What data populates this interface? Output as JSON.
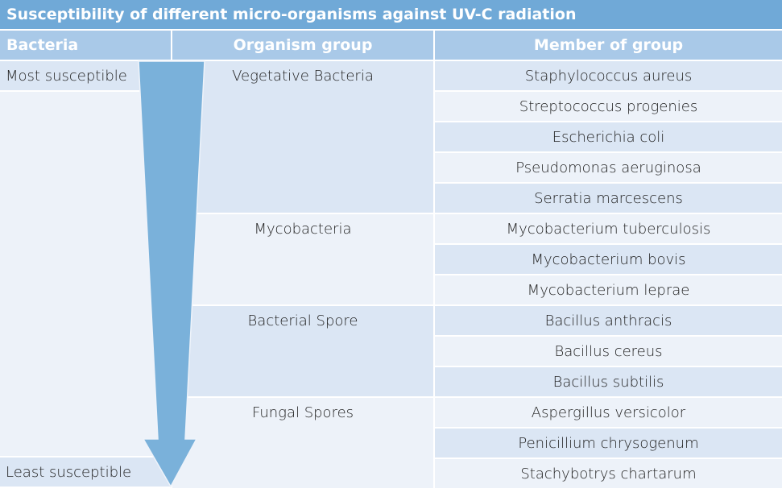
{
  "title": "Susceptibility of different micro-organisms against UV-C radiation",
  "headers": [
    "Bacteria",
    "Organism group",
    "Member of group"
  ],
  "bacteria": {
    "top": "Most susceptible",
    "bottom": "Least susceptible"
  },
  "groups": [
    {
      "name": "Vegetative Bacteria",
      "members": [
        "Staphylococcus aureus",
        "Streptococcus progenies",
        "Escherichia coli",
        "Pseudomonas aeruginosa",
        "Serratia marcescens"
      ]
    },
    {
      "name": "Mycobacteria",
      "members": [
        "Mycobacterium tuberculosis",
        "Mycobacterium bovis",
        "Mycobacterium leprae"
      ]
    },
    {
      "name": "Bacterial Spore",
      "members": [
        "Bacillus anthracis",
        "Bacillus cereus",
        "Bacillus subtilis"
      ]
    },
    {
      "name": "Fungal Spores",
      "members": [
        "Aspergillus versicolor",
        "Penicillium chrysogenum",
        "Stachybotrys chartarum"
      ]
    }
  ],
  "colors": {
    "title": "#70a9d7",
    "header": "#a9c9e8",
    "row_dark": "#dbe6f4",
    "row_light": "#edf2f9",
    "arrow": "#7ab1da"
  }
}
